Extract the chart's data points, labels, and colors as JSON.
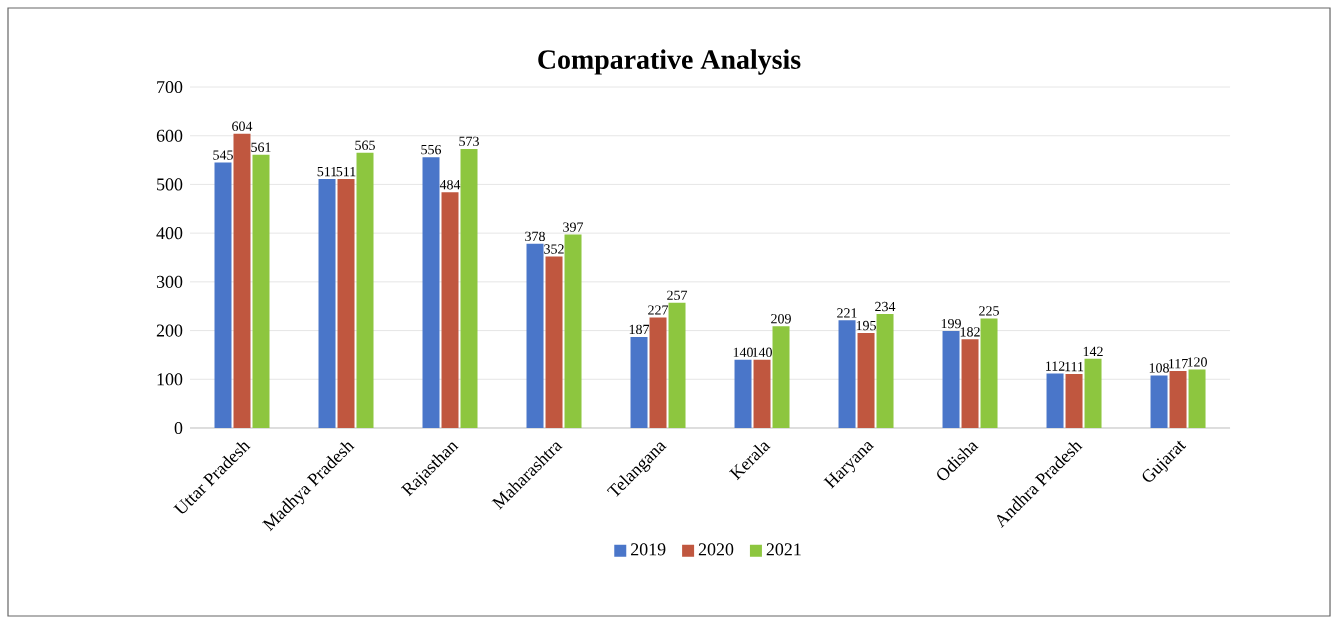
{
  "chart_data": {
    "type": "bar",
    "title": "Comparative Analysis",
    "categories": [
      "Uttar Pradesh",
      "Madhya Pradesh",
      "Rajasthan",
      "Maharashtra",
      "Telangana",
      "Kerala",
      "Haryana",
      "Odisha",
      "Andhra Pradesh",
      "Gujarat"
    ],
    "series": [
      {
        "name": "2019",
        "color": "#4a76c9",
        "values": [
          545,
          511,
          556,
          378,
          187,
          140,
          221,
          199,
          112,
          108
        ]
      },
      {
        "name": "2020",
        "color": "#c0573f",
        "values": [
          604,
          511,
          484,
          352,
          227,
          140,
          195,
          182,
          111,
          117
        ]
      },
      {
        "name": "2021",
        "color": "#8dc63f",
        "values": [
          561,
          565,
          573,
          397,
          257,
          209,
          234,
          225,
          142,
          120
        ]
      }
    ],
    "ylim": [
      0,
      700
    ],
    "yticks": [
      0,
      100,
      200,
      300,
      400,
      500,
      600,
      700
    ],
    "grid": "y",
    "legend": "bottom",
    "data_labels": true
  }
}
